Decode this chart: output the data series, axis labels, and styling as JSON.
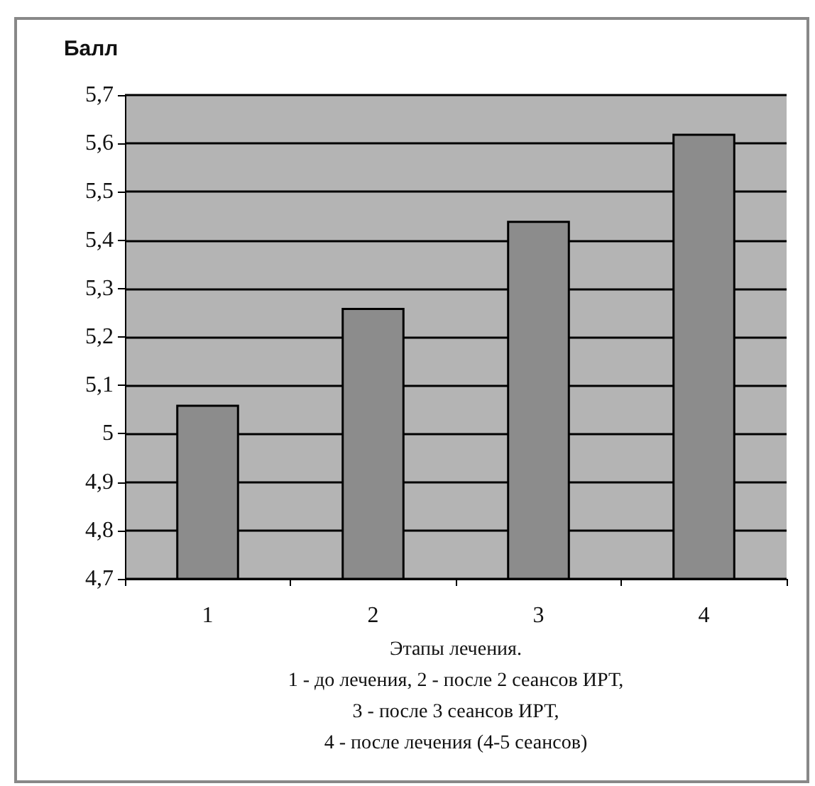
{
  "chart_data": {
    "type": "bar",
    "ylabel": "Балл",
    "xlabel": "Этапы лечения.\n1 - до лечения, 2 - после 2 сеансов ИРТ,\n3 - после 3 сеансов ИРТ,\n4 - после лечения (4-5 сеансов)",
    "categories": [
      "1",
      "2",
      "3",
      "4"
    ],
    "values": [
      5.06,
      5.26,
      5.44,
      5.62
    ],
    "color": "#8c8c8c",
    "ylim": [
      4.7,
      5.7
    ],
    "yticks": [
      {
        "value": 4.7,
        "label": "4,7"
      },
      {
        "value": 4.8,
        "label": "4,8"
      },
      {
        "value": 4.9,
        "label": "4,9"
      },
      {
        "value": 5,
        "label": "5"
      },
      {
        "value": 5.1,
        "label": "5,1"
      },
      {
        "value": 5.2,
        "label": "5,2"
      },
      {
        "value": 5.3,
        "label": "5,3"
      },
      {
        "value": 5.4,
        "label": "5,4"
      },
      {
        "value": 5.5,
        "label": "5,5"
      },
      {
        "value": 5.6,
        "label": "5,6"
      },
      {
        "value": 5.7,
        "label": "5,7"
      }
    ],
    "grid": "y"
  }
}
